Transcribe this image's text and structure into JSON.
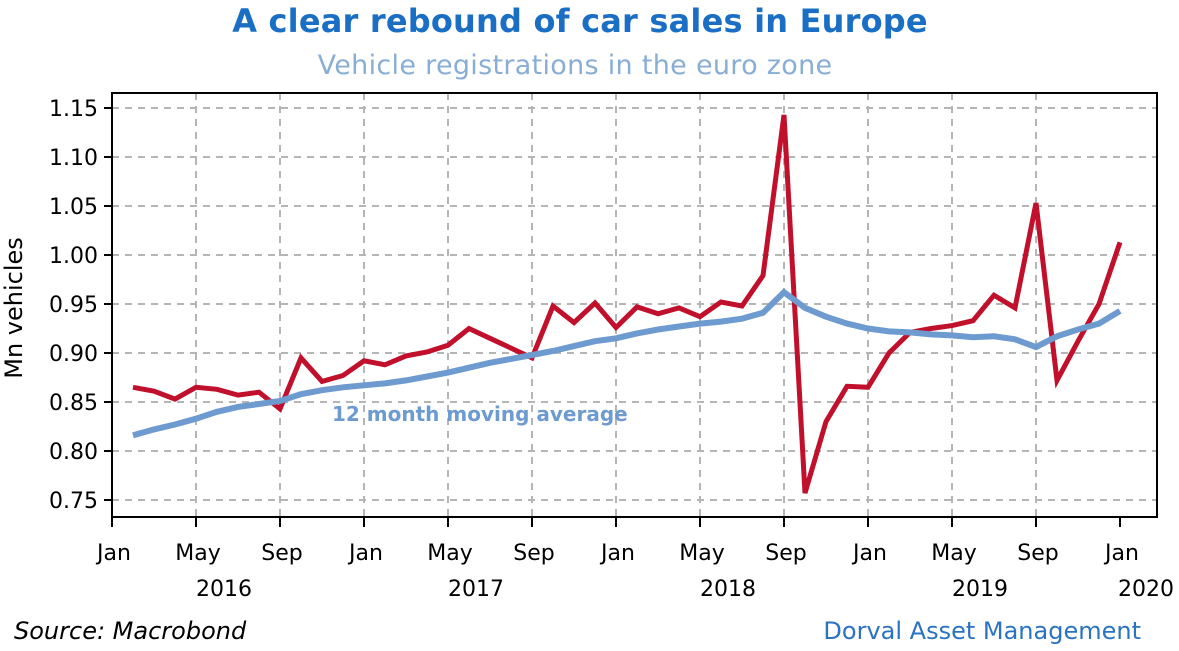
{
  "header": {
    "title": "A clear rebound of car sales in Europe",
    "subtitle": "Vehicle registrations in the euro zone"
  },
  "footer": {
    "source": "Source: Macrobond",
    "credit": "Dorval Asset Management"
  },
  "chart_data": {
    "type": "line",
    "title": "A clear rebound of car sales in Europe",
    "subtitle": "Vehicle registrations in the euro zone",
    "xlabel": "",
    "ylabel": "Mn vehicles",
    "ylim": [
      0.75,
      1.15
    ],
    "yticks": [
      "0.75",
      "0.80",
      "0.85",
      "0.90",
      "0.95",
      "1.00",
      "1.05",
      "1.10",
      "1.15"
    ],
    "x_month_ticks": [
      "Jan",
      "May",
      "Sep",
      "Jan",
      "May",
      "Sep",
      "Jan",
      "May",
      "Sep",
      "Jan",
      "May",
      "Sep",
      "Jan"
    ],
    "x_year_labels": [
      "2016",
      "2017",
      "2018",
      "2019",
      "2020"
    ],
    "x_range": [
      "2016-01",
      "2020-01"
    ],
    "grid": true,
    "annotation": "12 month moving average",
    "series": [
      {
        "name": "Vehicle registrations",
        "color": "#c0102b",
        "start": "2016-02",
        "values": [
          0.865,
          0.861,
          0.853,
          0.865,
          0.863,
          0.857,
          0.86,
          0.843,
          0.895,
          0.871,
          0.877,
          0.892,
          0.888,
          0.897,
          0.901,
          0.908,
          0.925,
          0.915,
          0.905,
          0.895,
          0.948,
          0.931,
          0.951,
          0.926,
          0.947,
          0.94,
          0.946,
          0.937,
          0.952,
          0.948,
          0.979,
          1.143,
          0.757,
          0.83,
          0.866,
          0.865,
          0.9,
          0.921,
          0.925,
          0.928,
          0.933,
          0.959,
          0.946,
          1.053,
          0.872,
          0.912,
          0.95,
          1.013
        ]
      },
      {
        "name": "12 month moving average",
        "color": "#6d9acf",
        "start": "2016-02",
        "values": [
          0.816,
          0.822,
          0.827,
          0.833,
          0.84,
          0.845,
          0.848,
          0.851,
          0.858,
          0.862,
          0.865,
          0.867,
          0.869,
          0.872,
          0.876,
          0.88,
          0.885,
          0.89,
          0.894,
          0.898,
          0.902,
          0.907,
          0.912,
          0.915,
          0.92,
          0.924,
          0.927,
          0.93,
          0.932,
          0.935,
          0.941,
          0.962,
          0.946,
          0.937,
          0.93,
          0.925,
          0.922,
          0.921,
          0.919,
          0.918,
          0.916,
          0.917,
          0.914,
          0.906,
          0.917,
          0.924,
          0.93,
          0.943
        ]
      }
    ]
  }
}
